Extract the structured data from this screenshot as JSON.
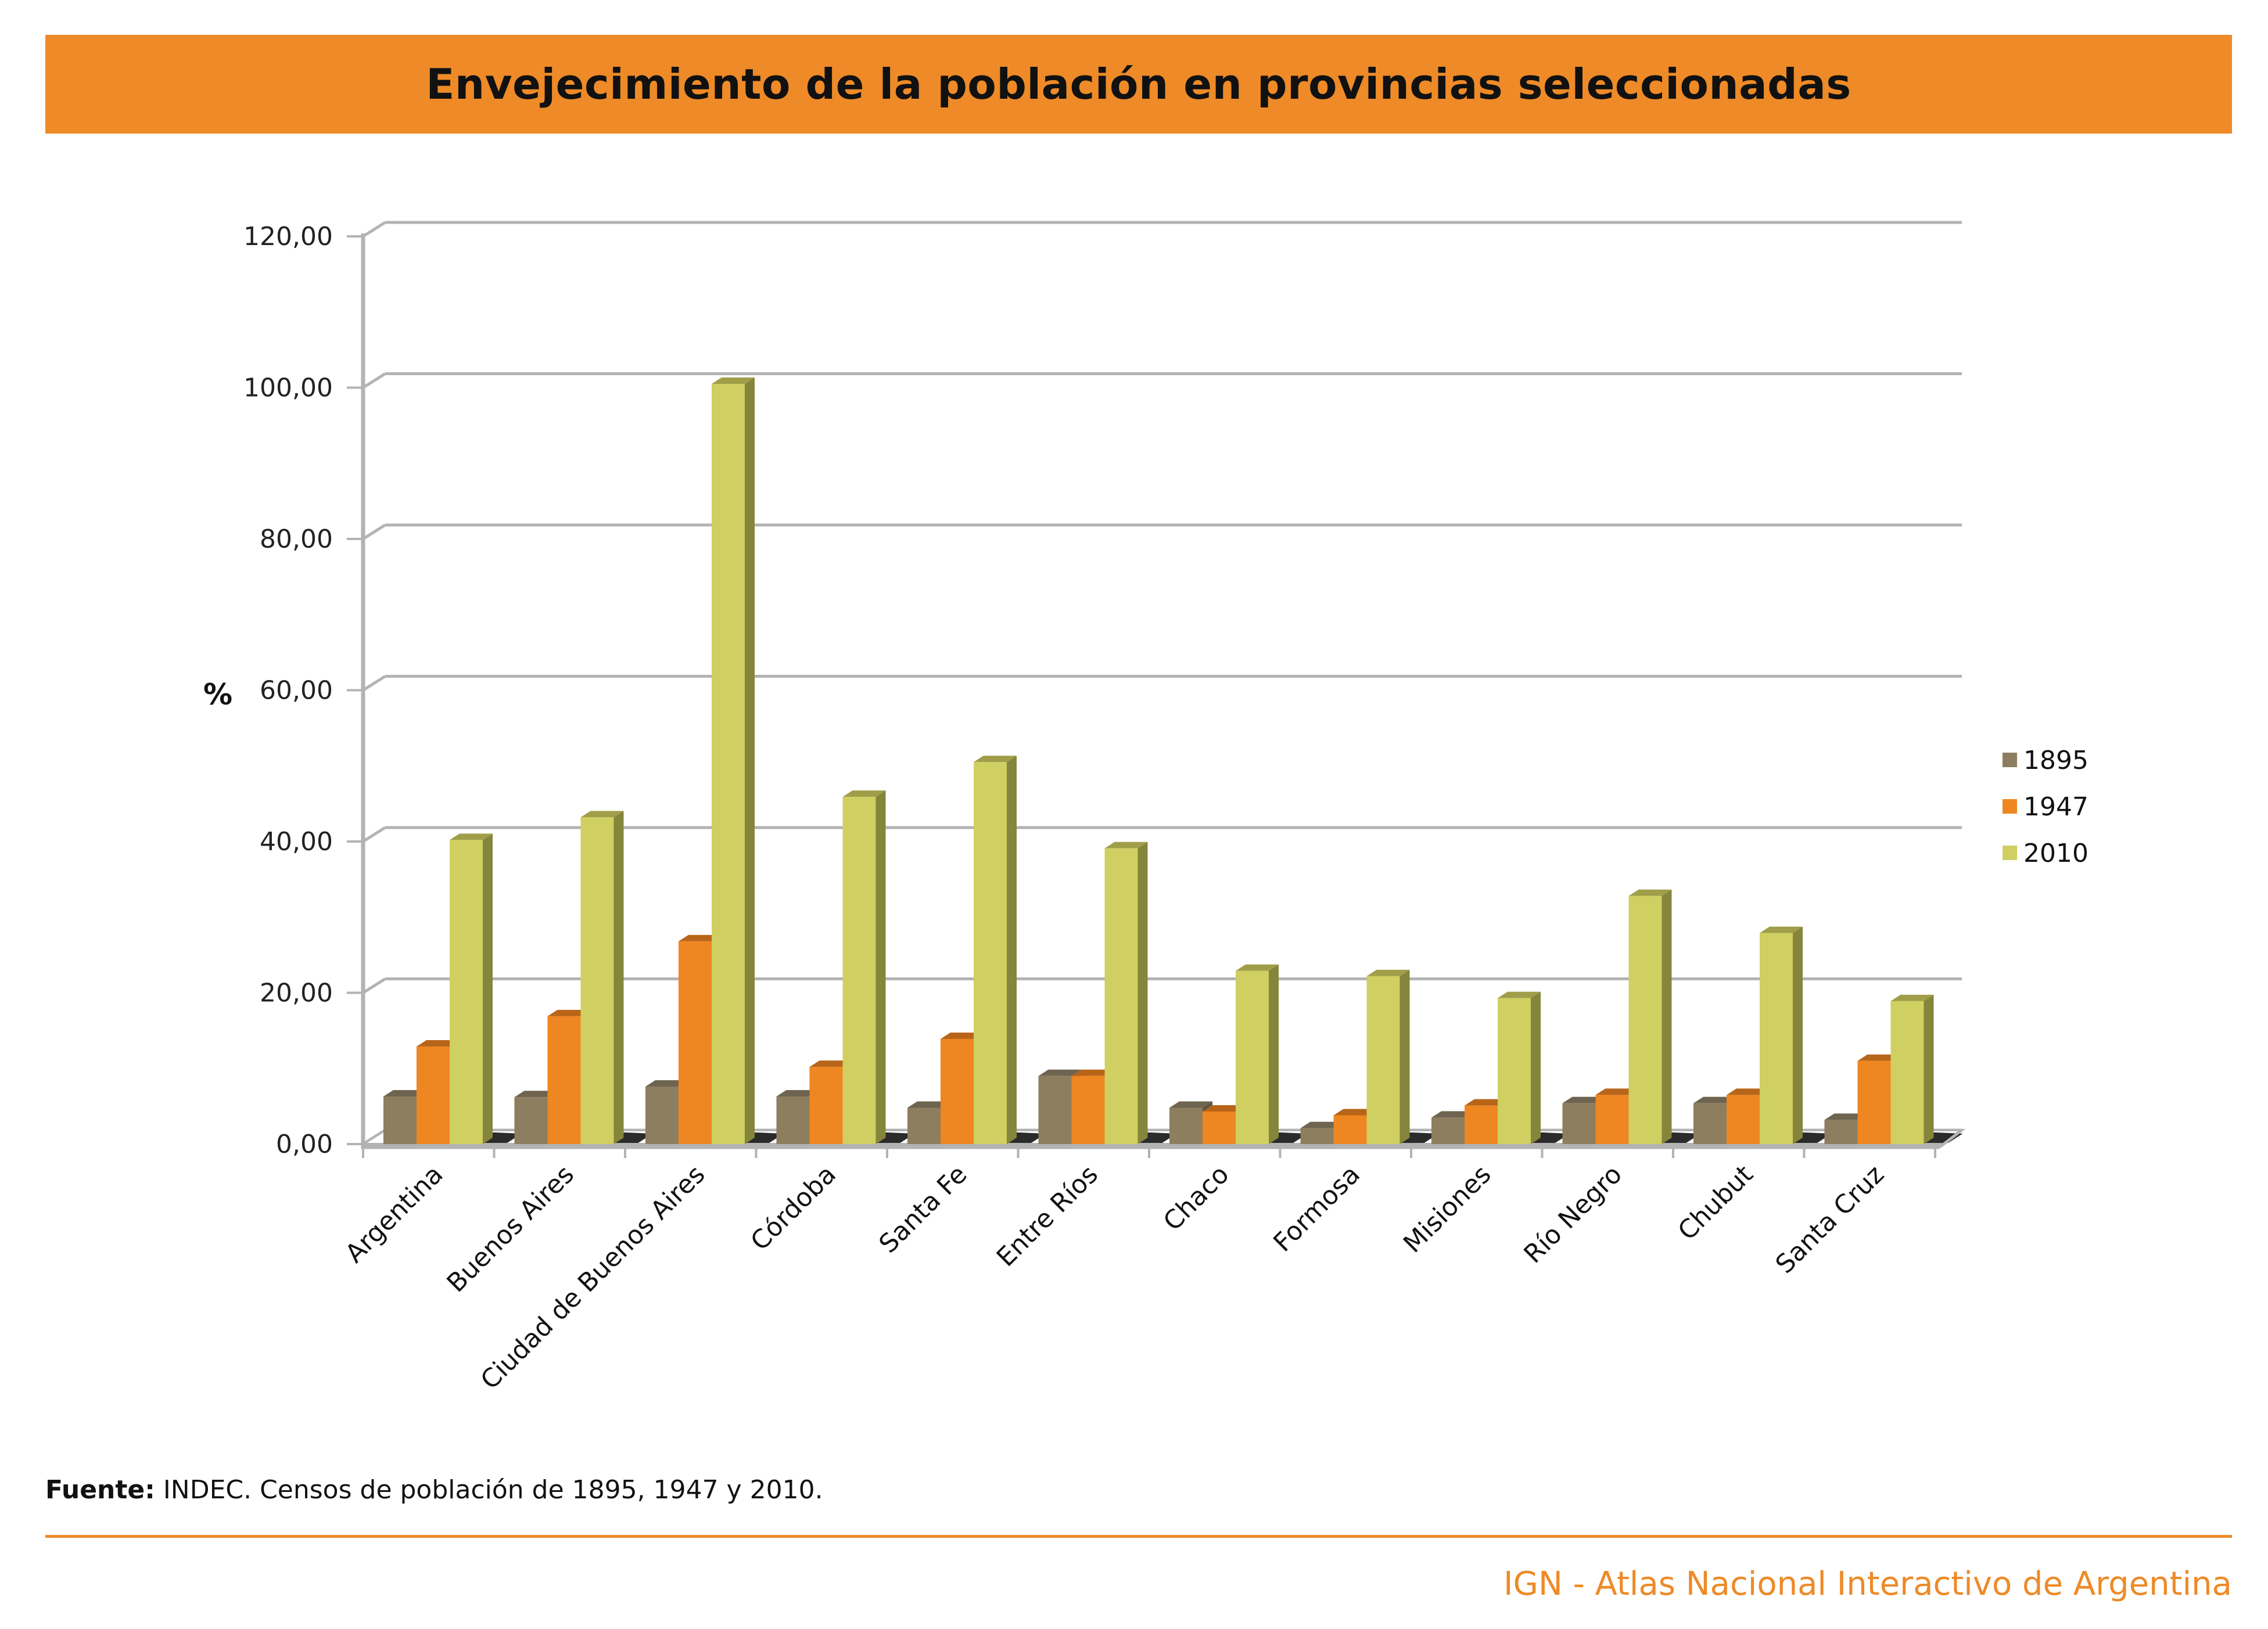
{
  "header": {
    "title": "Envejecimiento de la población en provincias seleccionadas"
  },
  "colors": {
    "accent": "#EE8A27",
    "series_1895": "#8C7E5E",
    "series_1947": "#EE8622",
    "series_2010": "#D0CF62"
  },
  "chart_data": {
    "type": "bar",
    "style": "3d-clustered-column",
    "title": "Envejecimiento de la población en provincias seleccionadas",
    "xlabel": "",
    "ylabel": "%",
    "ylim": [
      0,
      120
    ],
    "yticks": [
      0,
      20,
      40,
      60,
      80,
      100,
      120
    ],
    "ytick_labels": [
      "0,00",
      "20,00",
      "40,00",
      "60,00",
      "80,00",
      "100,00",
      "120,00"
    ],
    "grid": true,
    "legend_position": "right",
    "categories": [
      "Argentina",
      "Buenos Aires",
      "Ciudad de Buenos Aires",
      "Córdoba",
      "Santa Fe",
      "Entre Ríos",
      "Chaco",
      "Formosa",
      "Misiones",
      "Río Negro",
      "Chubut",
      "Santa Cruz"
    ],
    "series": [
      {
        "name": "1895",
        "color": "#8C7E5E",
        "values": [
          6.3,
          6.2,
          7.6,
          6.3,
          4.8,
          9.0,
          4.8,
          2.1,
          3.5,
          5.4,
          5.4,
          3.2
        ]
      },
      {
        "name": "1947",
        "color": "#EE8622",
        "values": [
          12.9,
          16.9,
          26.8,
          10.2,
          13.9,
          9.0,
          4.3,
          3.8,
          5.1,
          6.5,
          6.5,
          11.0
        ]
      },
      {
        "name": "2010",
        "color": "#D0CF62",
        "values": [
          40.2,
          43.2,
          100.5,
          45.9,
          50.5,
          39.1,
          22.9,
          22.2,
          19.3,
          32.8,
          27.9,
          18.9
        ]
      }
    ]
  },
  "footer": {
    "source_label": "Fuente:",
    "source_text": " INDEC. Censos de población de 1895, 1947 y 2010.",
    "brand": "IGN - Atlas Nacional Interactivo de Argentina"
  }
}
